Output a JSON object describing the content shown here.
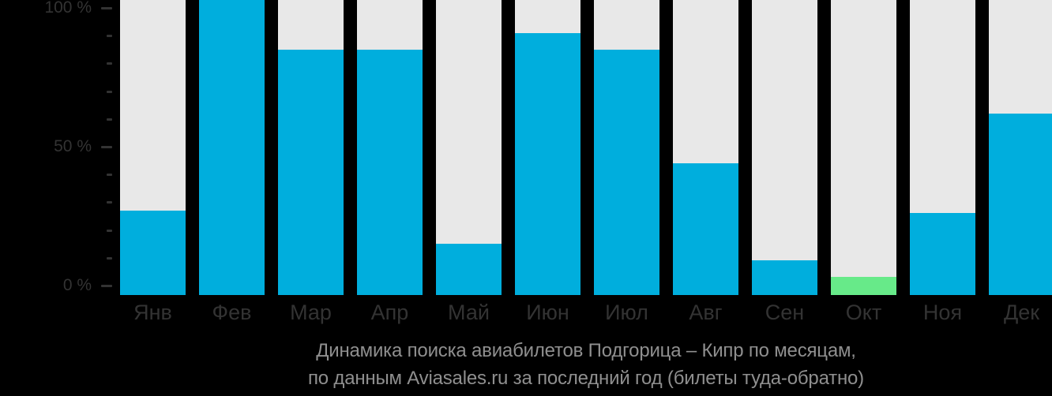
{
  "chart_data": {
    "type": "bar",
    "title": "Динамика поиска авиабилетов Подгорица – Кипр по месяцам,",
    "subtitle": "по данным Aviasales.ru за последний год (билеты туда-обратно)",
    "categories": [
      "Янв",
      "Фев",
      "Мар",
      "Апр",
      "Май",
      "Июн",
      "Июл",
      "Авг",
      "Сен",
      "Окт",
      "Ноя",
      "Дек"
    ],
    "values": [
      27,
      100,
      85,
      85,
      15,
      91,
      85,
      44,
      9,
      3,
      26,
      62
    ],
    "unit": "%",
    "xlabel": "",
    "ylabel": "",
    "ylim": [
      0,
      100
    ],
    "ytick_labels": [
      "0 %",
      "50 %",
      "100 %"
    ],
    "yticks_percent": [
      0,
      50,
      100
    ],
    "minor_ticks_percent": [
      10,
      20,
      30,
      40,
      60,
      70,
      80,
      90
    ],
    "highlight_index": 9,
    "legend": "none",
    "grid": false,
    "colors": {
      "bar_fill": "#00aedd",
      "bar_background": "#e8e8e8",
      "highlight_fill": "#67ea89",
      "background": "#000000",
      "axis_text": "#333333",
      "title_text": "#8f8f8f"
    }
  }
}
